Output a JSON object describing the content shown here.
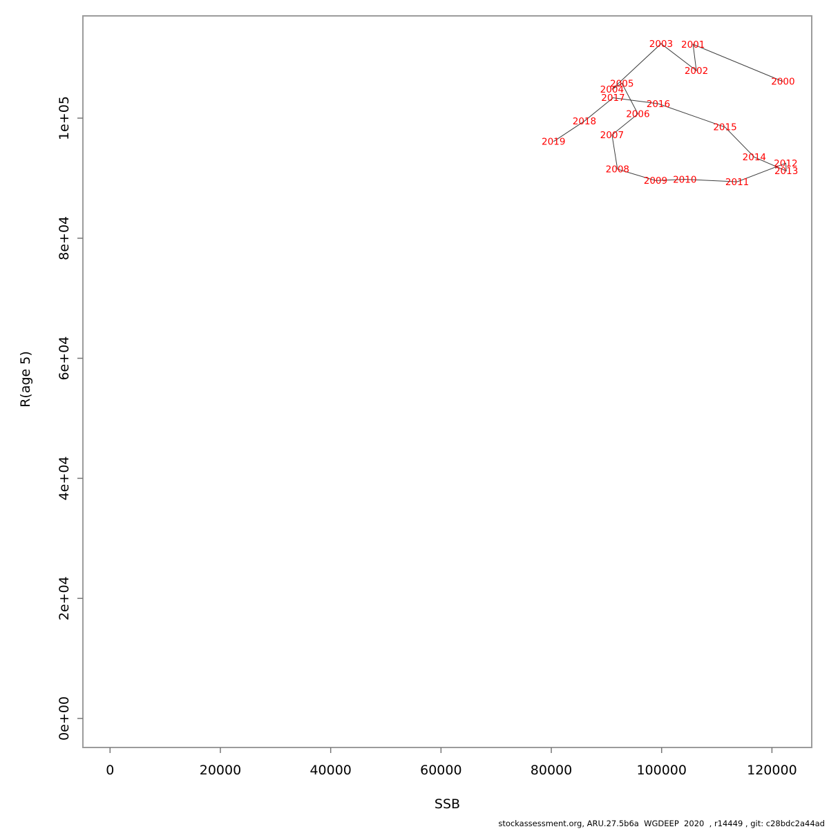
{
  "page": {
    "footer": "stockassessment.org, ARU.27.5b6a  WGDEEP  2020  , r14449 , git: c28bdc2a44ad"
  },
  "chart_data": {
    "type": "scatter",
    "subtype": "connected-year-labels",
    "title": "",
    "xlabel": "SSB",
    "ylabel": "R(age 5)",
    "xlim": [
      -4900,
      127200
    ],
    "ylim": [
      -4800,
      117000
    ],
    "grid": false,
    "legend": "none",
    "label_color": "#ff0000",
    "line_color": "#3c3c3c",
    "box_color": "#9b9b9b",
    "tick_color": "#757575",
    "x_ticks": {
      "values": [
        0,
        20000,
        40000,
        60000,
        80000,
        100000,
        120000
      ],
      "labels": [
        "0",
        "20000",
        "40000",
        "60000",
        "80000",
        "100000",
        "120000"
      ]
    },
    "y_ticks": {
      "values": [
        0,
        20000,
        40000,
        60000,
        80000,
        100000
      ],
      "labels": [
        "0e+00",
        "2e+04",
        "4e+04",
        "6e+04",
        "8e+04",
        "1e+05"
      ]
    },
    "points": [
      {
        "year": "2000",
        "ssb": 122000,
        "recruitment": 106100
      },
      {
        "year": "2001",
        "ssb": 105700,
        "recruitment": 112300
      },
      {
        "year": "2002",
        "ssb": 106300,
        "recruitment": 107900
      },
      {
        "year": "2003",
        "ssb": 99900,
        "recruitment": 112400
      },
      {
        "year": "2004",
        "ssb": 91000,
        "recruitment": 104800
      },
      {
        "year": "2005",
        "ssb": 92800,
        "recruitment": 105800
      },
      {
        "year": "2006",
        "ssb": 95700,
        "recruitment": 100700
      },
      {
        "year": "2007",
        "ssb": 91000,
        "recruitment": 97200
      },
      {
        "year": "2008",
        "ssb": 92000,
        "recruitment": 91500
      },
      {
        "year": "2009",
        "ssb": 98900,
        "recruitment": 89600
      },
      {
        "year": "2010",
        "ssb": 104200,
        "recruitment": 89800
      },
      {
        "year": "2011",
        "ssb": 113700,
        "recruitment": 89400
      },
      {
        "year": "2012",
        "ssb": 122500,
        "recruitment": 92500
      },
      {
        "year": "2013",
        "ssb": 122600,
        "recruitment": 91200
      },
      {
        "year": "2014",
        "ssb": 116800,
        "recruitment": 93500
      },
      {
        "year": "2015",
        "ssb": 111500,
        "recruitment": 98500
      },
      {
        "year": "2016",
        "ssb": 99400,
        "recruitment": 102400
      },
      {
        "year": "2017",
        "ssb": 91200,
        "recruitment": 103400
      },
      {
        "year": "2018",
        "ssb": 86000,
        "recruitment": 99500
      },
      {
        "year": "2019",
        "ssb": 80400,
        "recruitment": 96100
      }
    ]
  }
}
